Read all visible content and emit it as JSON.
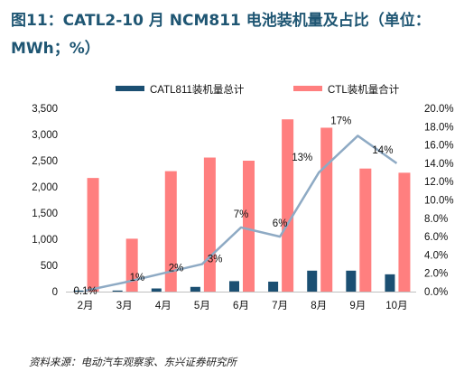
{
  "title": "图11：CATL2-10 月 NCM811 电池装机量及占比（单位：MWh；%）",
  "source": "资料来源：电动汽车观察家、东兴证券研究所",
  "colors": {
    "catl": "#1b4f72",
    "ctl": "#ff7f7f",
    "share": "#8eaac4",
    "title": "#1f5673"
  },
  "chart_data": {
    "type": "bar",
    "categories": [
      "2月",
      "3月",
      "4月",
      "5月",
      "6月",
      "7月",
      "8月",
      "9月",
      "10月"
    ],
    "series": [
      {
        "name": "CATL811装机量总计",
        "kind": "bar",
        "axis": "left",
        "values": [
          20,
          20,
          60,
          90,
          200,
          190,
          400,
          400,
          330
        ]
      },
      {
        "name": "CTL装机量合计",
        "kind": "bar",
        "axis": "left",
        "values": [
          2170,
          1010,
          2300,
          2560,
          2500,
          3290,
          3130,
          2350,
          2270
        ]
      },
      {
        "name": "",
        "kind": "line",
        "axis": "right",
        "values": [
          0.1,
          1,
          2,
          3,
          7,
          6,
          13,
          17,
          14
        ]
      }
    ],
    "line_labels": [
      "0.1%",
      "1%",
      "2%",
      "3%",
      "7%",
      "6%",
      "13%",
      "17%",
      "14%"
    ],
    "left_ticks": [
      "0",
      "500",
      "1,000",
      "1,500",
      "2,000",
      "2,500",
      "3,000",
      "3,500"
    ],
    "right_ticks": [
      "0.0%",
      "2.0%",
      "4.0%",
      "6.0%",
      "8.0%",
      "10.0%",
      "12.0%",
      "14.0%",
      "16.0%",
      "18.0%",
      "20.0%"
    ],
    "ylim": [
      0,
      3500
    ],
    "y2lim": [
      0,
      20
    ],
    "legend_position": "top",
    "grid": false
  }
}
